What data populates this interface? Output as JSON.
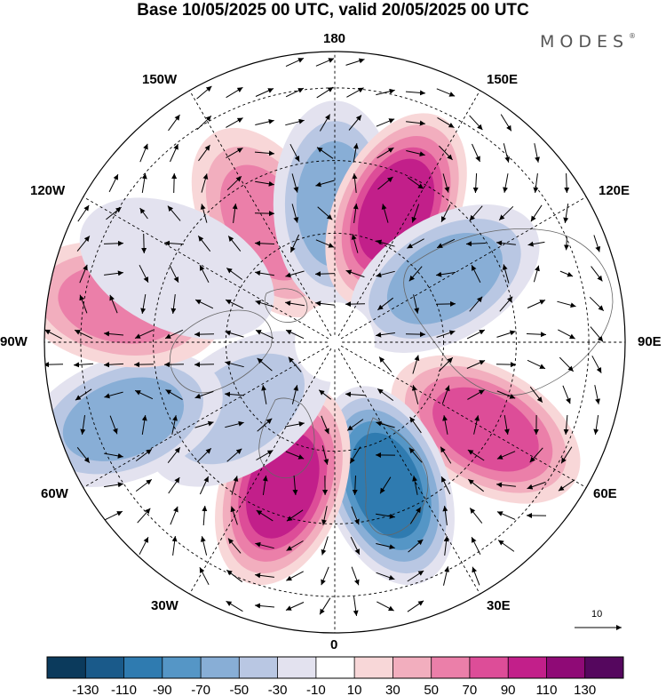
{
  "title": "Base 10/05/2025 00 UTC, valid 20/05/2025 00 UTC",
  "brand": "MODES",
  "brand_mark": "®",
  "longitude_labels": {
    "lon_180": "180",
    "lon_150W": "150W",
    "lon_150E": "150E",
    "lon_120W": "120W",
    "lon_120E": "120E",
    "lon_90W": "90W",
    "lon_90E": "90E",
    "lon_60W": "60W",
    "lon_60E": "60E",
    "lon_30W": "30W",
    "lon_30E": "30E",
    "lon_0": "0"
  },
  "reference_vector_label": "10",
  "colorbar": {
    "colors": [
      "#0b3a5c",
      "#1a5a8a",
      "#2f7bb0",
      "#5596c6",
      "#88aed6",
      "#b9c7e3",
      "#e3e2ef",
      "#ffffff",
      "#f8d7d8",
      "#f2aebe",
      "#eb7fa9",
      "#dd4d98",
      "#c21f8a",
      "#8f0a76",
      "#55075e"
    ],
    "tick_labels": [
      "-130",
      "-110",
      "-90",
      "-70",
      "-50",
      "-30",
      "-10",
      "10",
      "30",
      "50",
      "70",
      "90",
      "110",
      "130"
    ]
  },
  "anomaly_centers": [
    {
      "lon": -150,
      "lat": 52,
      "value": 60
    },
    {
      "lon": 180,
      "lat": 52,
      "value": -70
    },
    {
      "lon": 155,
      "lat": 50,
      "value": 110
    },
    {
      "lon": 120,
      "lat": 55,
      "value": -60
    },
    {
      "lon": 60,
      "lat": 42,
      "value": 90
    },
    {
      "lon": 20,
      "lat": 48,
      "value": -110
    },
    {
      "lon": -20,
      "lat": 48,
      "value": 110
    },
    {
      "lon": -55,
      "lat": 58,
      "value": -50
    },
    {
      "lon": -70,
      "lat": 28,
      "value": -60
    },
    {
      "lon": -100,
      "lat": 30,
      "value": 60
    },
    {
      "lon": -115,
      "lat": 42,
      "value": -30
    }
  ]
}
